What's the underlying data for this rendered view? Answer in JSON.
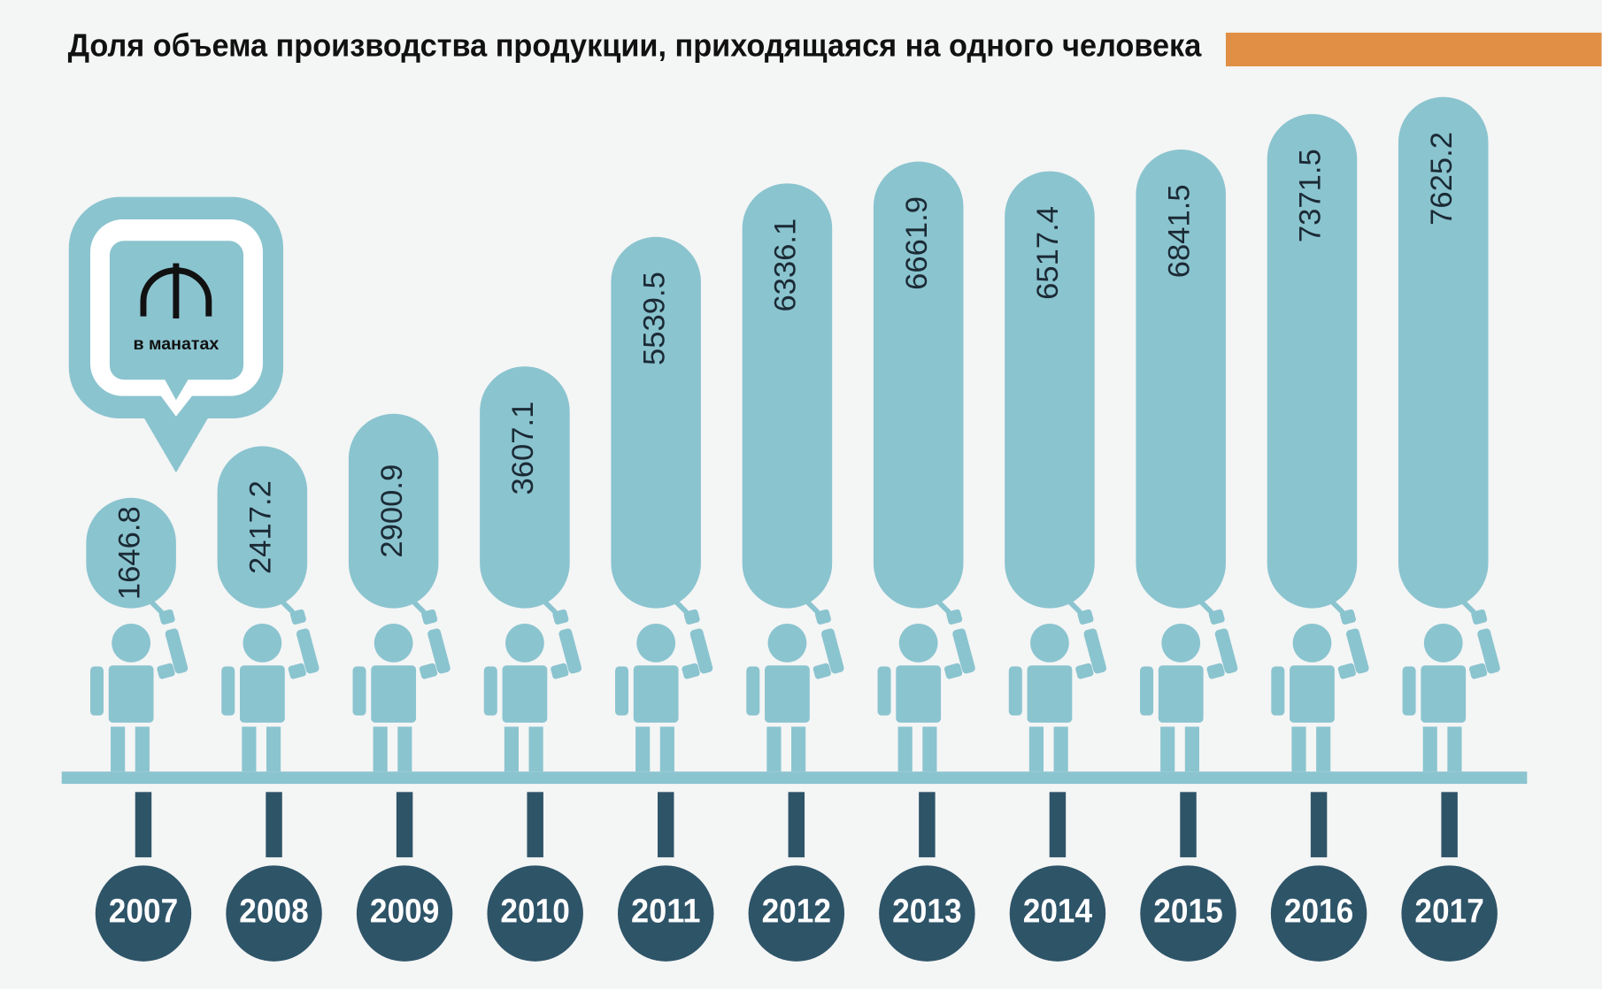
{
  "chart_data": {
    "type": "bar",
    "title": "Доля объема производства продукции, приходящаяся на одного человека",
    "unit": "в манатах",
    "categories": [
      "2007",
      "2008",
      "2009",
      "2010",
      "2011",
      "2012",
      "2013",
      "2014",
      "2015",
      "2016",
      "2017"
    ],
    "values": [
      1646.8,
      2417.2,
      2900.9,
      3607.1,
      5539.5,
      6336.1,
      6661.9,
      6517.4,
      6841.5,
      7371.5,
      7625.2
    ],
    "color": "#8ac4cf"
  }
}
